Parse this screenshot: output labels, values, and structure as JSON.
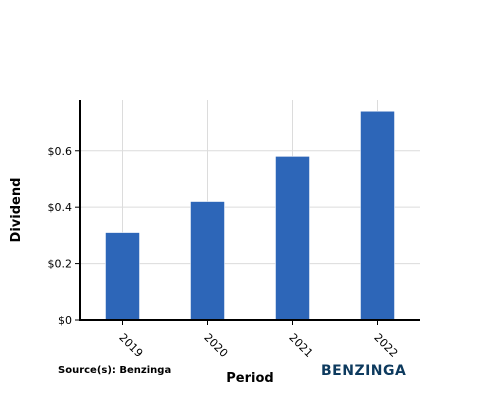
{
  "chart_data": {
    "type": "bar",
    "categories": [
      "2019",
      "2020",
      "2021",
      "2022"
    ],
    "values": [
      0.31,
      0.42,
      0.58,
      0.74
    ],
    "xlabel": "Period",
    "ylabel": "Dividend",
    "ylim": [
      0,
      0.78
    ],
    "yticks": [
      0,
      0.2,
      0.4,
      0.6
    ],
    "ytick_labels": [
      "$0",
      "$0.2",
      "$0.4",
      "$0.6"
    ],
    "grid": true,
    "bar_color": "#2d66b8"
  },
  "footer": {
    "source": "Source(s): Benzinga",
    "brand": "BENZINGA",
    "brand_color": "#0d3a5e"
  }
}
